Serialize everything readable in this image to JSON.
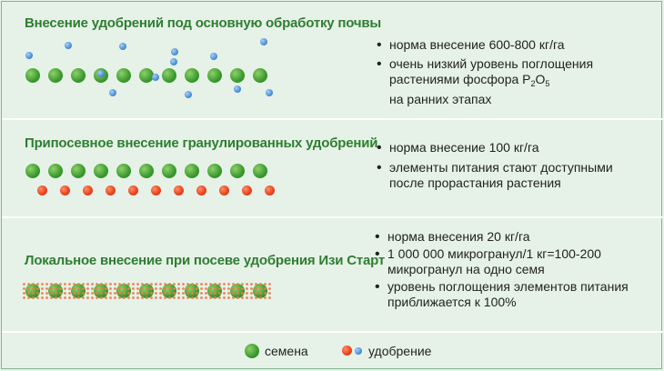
{
  "panels": [
    {
      "title": "Внесение удобрений под основную обработку почвы",
      "bullets": [
        "норма внесение 600-800 кг/га"
      ],
      "bullet2": {
        "line1": "очень низкий уровень поглощения",
        "line2a": "растениями фосфора ",
        "p": "P",
        "p_sub": "2",
        "o": "O",
        "o_sub": "5",
        "line3": "на ранних этапах"
      }
    },
    {
      "title": "Припосевное внесение гранулированных удобрений",
      "bullets": [
        "норма внесение 100 кг/га"
      ],
      "bullet2": {
        "line1": "элементы питания стают доступными",
        "line2": "после прорастания растения"
      }
    },
    {
      "title": "Локальное внесение при посеве удобрения Изи Старт",
      "bullets": [
        "норма внесения 20 кг/га"
      ],
      "bullet2": {
        "line1": "1 000 000 микрогранул/1 кг=100-200",
        "line2": "микрогранул на одно семя"
      },
      "bullet3": {
        "line1": "уровень поглощения элементов питания",
        "line2": "приближается к 100%"
      }
    }
  ],
  "legend": {
    "seeds": "семена",
    "fertilizer": "удобрение"
  },
  "colors": {
    "title_green": "#2f7d32",
    "seed_green": "#3a9a2e",
    "fertilizer_red": "#e8401c",
    "fertilizer_blue": "#4a8fd8",
    "background": "#e6f2e7"
  }
}
